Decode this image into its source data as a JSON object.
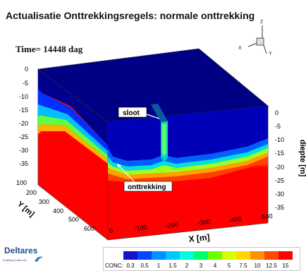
{
  "header": {
    "title": "Actualisatie Onttrekkingsregels: normale onttrekking",
    "time_label": "Time= 14448 dag"
  },
  "orientation_axes": {
    "z": "Z",
    "x": "X",
    "y": "Y"
  },
  "annotations": {
    "sloot": "sloot",
    "onttrekking": "onttrekking"
  },
  "axes": {
    "x_title": "X [m]",
    "x_ticks": [
      "0",
      "-100",
      "-200",
      "-300",
      "-400",
      "-500"
    ],
    "y_title": "Y [m]",
    "y_ticks": [
      "100",
      "200",
      "300",
      "400",
      "500",
      "600"
    ],
    "z_left_ticks": [
      "0",
      "-5",
      "-10",
      "-15",
      "-20",
      "-25",
      "-30",
      "-35"
    ],
    "z_right_title": "diepte [m]",
    "z_right_ticks": [
      "0",
      "-5",
      "-10",
      "-15",
      "-20",
      "-25",
      "-30",
      "-35"
    ]
  },
  "legend": {
    "label": "CONC:",
    "values": [
      "0.3",
      "0.5",
      "1",
      "1.5",
      "2",
      "3",
      "4",
      "5",
      "7.5",
      "10",
      "12.5",
      "15"
    ],
    "colors": [
      "#1414c8",
      "#0046ff",
      "#0090ff",
      "#00c8ff",
      "#00ffd8",
      "#00ff70",
      "#70ff00",
      "#d8ff00",
      "#ffd800",
      "#ff9000",
      "#ff4800",
      "#ff0000"
    ]
  },
  "logo": {
    "name": "Deltares",
    "tagline": "Enabling Delta Life"
  },
  "colors": {
    "top_face": "#000084",
    "deep_blue": "#0000c8",
    "blue": "#0050ff",
    "red": "#ff0000"
  }
}
